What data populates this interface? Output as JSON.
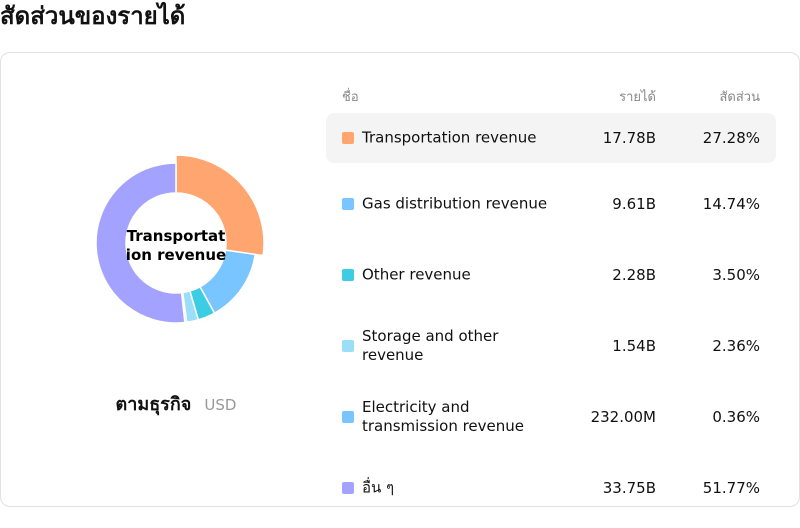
{
  "page_title": "สัดส่วนของรายได้",
  "donut_center_label": "Transportation revenue",
  "caption": {
    "main": "ตามธุรกิจ",
    "unit": "USD"
  },
  "table": {
    "headers": {
      "name": "ชื่อ",
      "revenue": "รายได้",
      "share": "สัดส่วน"
    },
    "rows": [
      {
        "name": "Transportation revenue",
        "revenue": "17.78B",
        "share": "27.28%",
        "color": "#FFA570",
        "selected": true
      },
      {
        "name": "Gas distribution revenue",
        "revenue": "9.61B",
        "share": "14.74%",
        "color": "#78C5FF"
      },
      {
        "name": "Other revenue",
        "revenue": "2.28B",
        "share": "3.50%",
        "color": "#3CCDE4"
      },
      {
        "name": "Storage and other revenue",
        "revenue": "1.54B",
        "share": "2.36%",
        "color": "#9BDEF7"
      },
      {
        "name": "Electricity and transmission revenue",
        "revenue": "232.00M",
        "share": "0.36%",
        "color": "#78C5FF"
      },
      {
        "name": "อื่น ๆ",
        "revenue": "33.75B",
        "share": "51.77%",
        "color": "#A3A3FF"
      }
    ]
  },
  "chart_data": {
    "type": "pie",
    "donut": true,
    "currency": "USD",
    "categories": [
      "Transportation revenue",
      "Gas distribution revenue",
      "Other revenue",
      "Storage and other revenue",
      "Electricity and transmission revenue",
      "อื่น ๆ"
    ],
    "values": [
      17.78,
      9.61,
      2.28,
      1.54,
      0.232,
      33.75
    ],
    "shares_percent": [
      27.28,
      14.74,
      3.5,
      2.36,
      0.36,
      51.77
    ],
    "colors": [
      "#FFA570",
      "#78C5FF",
      "#3CCDE4",
      "#9BDEF7",
      "#78C5FF",
      "#A3A3FF"
    ],
    "highlighted": "Transportation revenue"
  }
}
